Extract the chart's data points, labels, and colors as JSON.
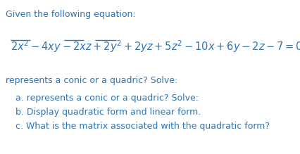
{
  "bg_color": "#ffffff",
  "text_color": "#2e74b5",
  "line1": "Given the following equation:",
  "line3": "represents a conic or a quadric? Solve:",
  "item_a": "a. represents a conic or a quadric? Solve:",
  "item_b": "b. Display quadratic form and linear form.",
  "item_c": "c. What is the matrix associated with the quadratic form?",
  "font_size_main": 9.0,
  "font_size_eq": 10.5
}
